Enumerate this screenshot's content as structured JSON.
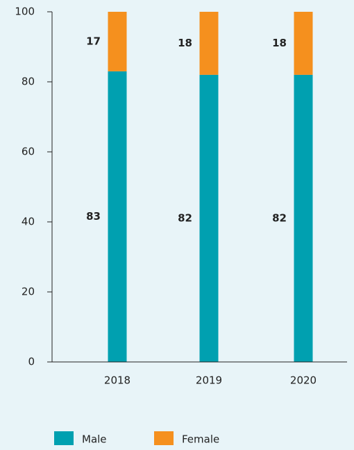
{
  "chart_data": {
    "type": "stacked_bar",
    "categories": [
      "2018",
      "2019",
      "2020"
    ],
    "series": [
      {
        "name": "Male",
        "color": "#00a0b0",
        "values": [
          83,
          82,
          82
        ]
      },
      {
        "name": "Female",
        "color": "#f5901e",
        "values": [
          17,
          18,
          18
        ]
      }
    ],
    "ylim": [
      0,
      100
    ],
    "yticks": [
      0,
      20,
      40,
      60,
      80,
      100
    ]
  }
}
